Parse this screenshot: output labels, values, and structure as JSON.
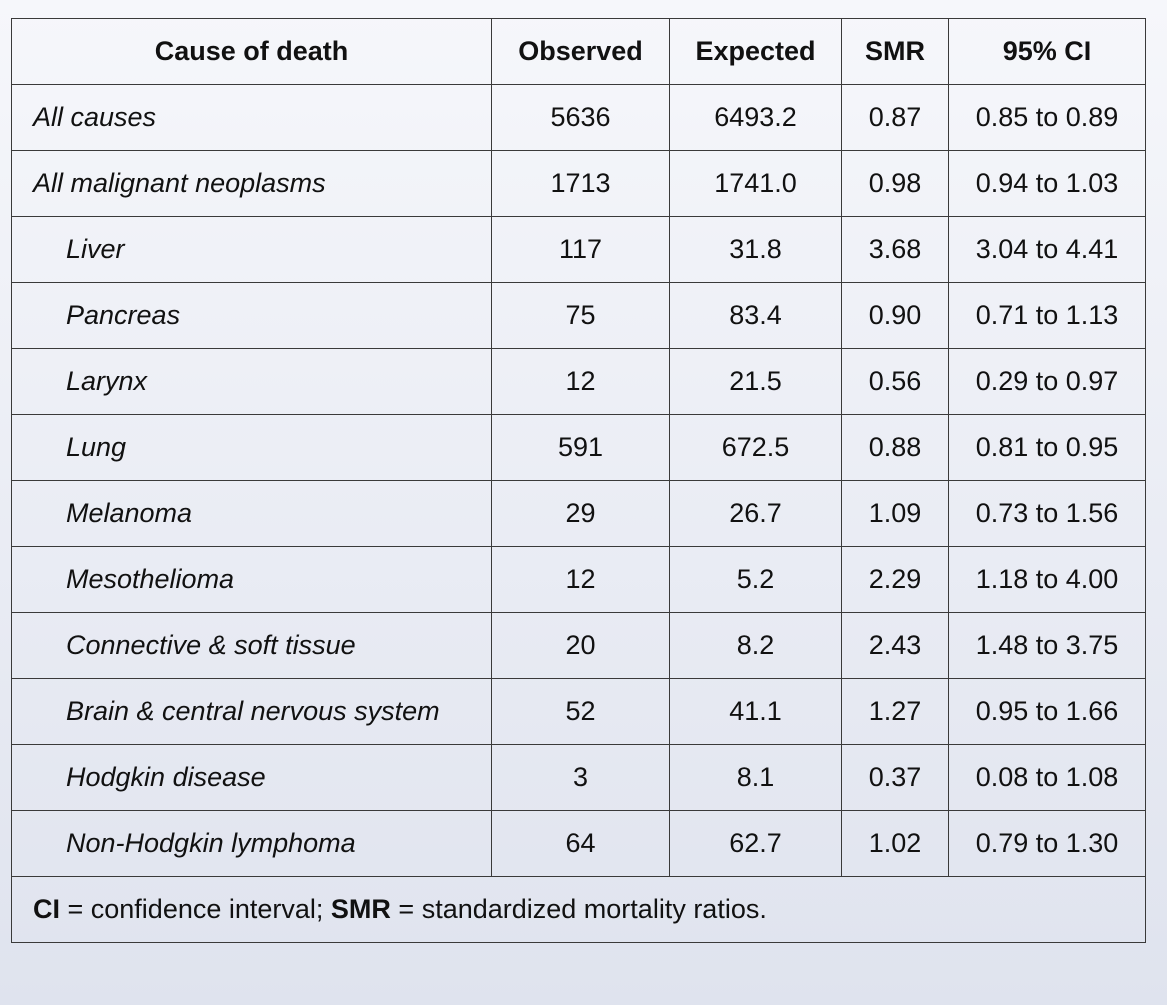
{
  "table": {
    "headers": [
      "Cause of death",
      "Observed",
      "Expected",
      "SMR",
      "95% CI"
    ],
    "rows": [
      {
        "cause": "All causes",
        "observed": "5636",
        "expected": "6493.2",
        "smr": "0.87",
        "ci": "0.85 to 0.89"
      },
      {
        "cause": "All malignant neoplasms",
        "observed": "1713",
        "expected": "1741.0",
        "smr": "0.98",
        "ci": "0.94 to 1.03"
      },
      {
        "cause": "Liver",
        "observed": "117",
        "expected": "31.8",
        "smr": "3.68",
        "ci": "3.04 to 4.41"
      },
      {
        "cause": "Pancreas",
        "observed": "75",
        "expected": "83.4",
        "smr": "0.90",
        "ci": "0.71 to 1.13"
      },
      {
        "cause": "Larynx",
        "observed": "12",
        "expected": "21.5",
        "smr": "0.56",
        "ci": "0.29 to 0.97"
      },
      {
        "cause": "Lung",
        "observed": "591",
        "expected": "672.5",
        "smr": "0.88",
        "ci": "0.81 to 0.95"
      },
      {
        "cause": "Melanoma",
        "observed": "29",
        "expected": "26.7",
        "smr": "1.09",
        "ci": "0.73 to 1.56"
      },
      {
        "cause": "Mesothelioma",
        "observed": "12",
        "expected": "5.2",
        "smr": "2.29",
        "ci": "1.18 to 4.00"
      },
      {
        "cause": "Connective & soft tissue",
        "observed": "20",
        "expected": "8.2",
        "smr": "2.43",
        "ci": "1.48 to 3.75"
      },
      {
        "cause": "Brain & central nervous system",
        "observed": "52",
        "expected": "41.1",
        "smr": "1.27",
        "ci": "0.95 to 1.66"
      },
      {
        "cause": "Hodgkin disease",
        "observed": "3",
        "expected": "8.1",
        "smr": "0.37",
        "ci": "0.08 to 1.08"
      },
      {
        "cause": "Non-Hodgkin lymphoma",
        "observed": "64",
        "expected": "62.7",
        "smr": "1.02",
        "ci": "0.79 to 1.30"
      }
    ],
    "footnote": {
      "term1": "CI",
      "def1": " = confidence interval; ",
      "term2": "SMR",
      "def2": " = standardized mortality ratios."
    }
  }
}
